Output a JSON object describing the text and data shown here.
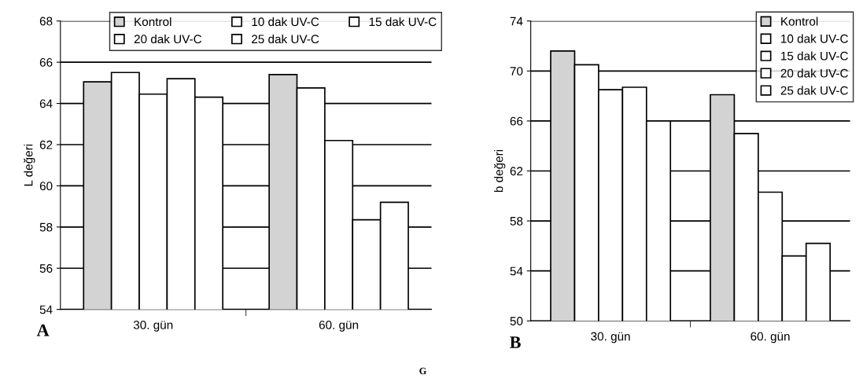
{
  "chart_data": [
    {
      "type": "bar",
      "ylabel": "L değeri",
      "categories": [
        "30. gün",
        "60. gün"
      ],
      "series": [
        {
          "name": "Kontrol",
          "color": "#d3d3d3",
          "values": [
            65.05,
            65.4
          ]
        },
        {
          "name": "10 dak UV-C",
          "color": "#ffffff",
          "values": [
            65.5,
            64.75
          ]
        },
        {
          "name": "15 dak UV-C",
          "color": "#ffffff",
          "values": [
            64.45,
            62.2
          ]
        },
        {
          "name": "20 dak UV-C",
          "color": "#ffffff",
          "values": [
            65.2,
            58.35
          ]
        },
        {
          "name": "25 dak UV-C",
          "color": "#ffffff",
          "values": [
            64.3,
            59.2
          ]
        }
      ],
      "ylim": [
        54,
        68
      ],
      "yticks": [
        54,
        56,
        58,
        60,
        62,
        64,
        66,
        68
      ],
      "grid": "y",
      "legend": "top",
      "annotations": [
        "A"
      ]
    },
    {
      "type": "bar",
      "ylabel": "b değeri",
      "categories": [
        "30. gün",
        "60. gün"
      ],
      "series": [
        {
          "name": "Kontrol",
          "color": "#d3d3d3",
          "values": [
            71.6,
            68.1
          ]
        },
        {
          "name": "10 dak UV-C",
          "color": "#ffffff",
          "values": [
            70.5,
            65.0
          ]
        },
        {
          "name": "15 dak UV-C",
          "color": "#ffffff",
          "values": [
            68.5,
            60.3
          ]
        },
        {
          "name": "20 dak UV-C",
          "color": "#ffffff",
          "values": [
            68.7,
            55.2
          ]
        },
        {
          "name": "25 dak UV-C",
          "color": "#ffffff",
          "values": [
            66.0,
            56.2
          ]
        }
      ],
      "ylim": [
        50,
        74
      ],
      "yticks": [
        50,
        54,
        58,
        62,
        66,
        70,
        74
      ],
      "grid": "y",
      "legend": "top right",
      "annotations": [
        "B",
        "G"
      ]
    }
  ]
}
